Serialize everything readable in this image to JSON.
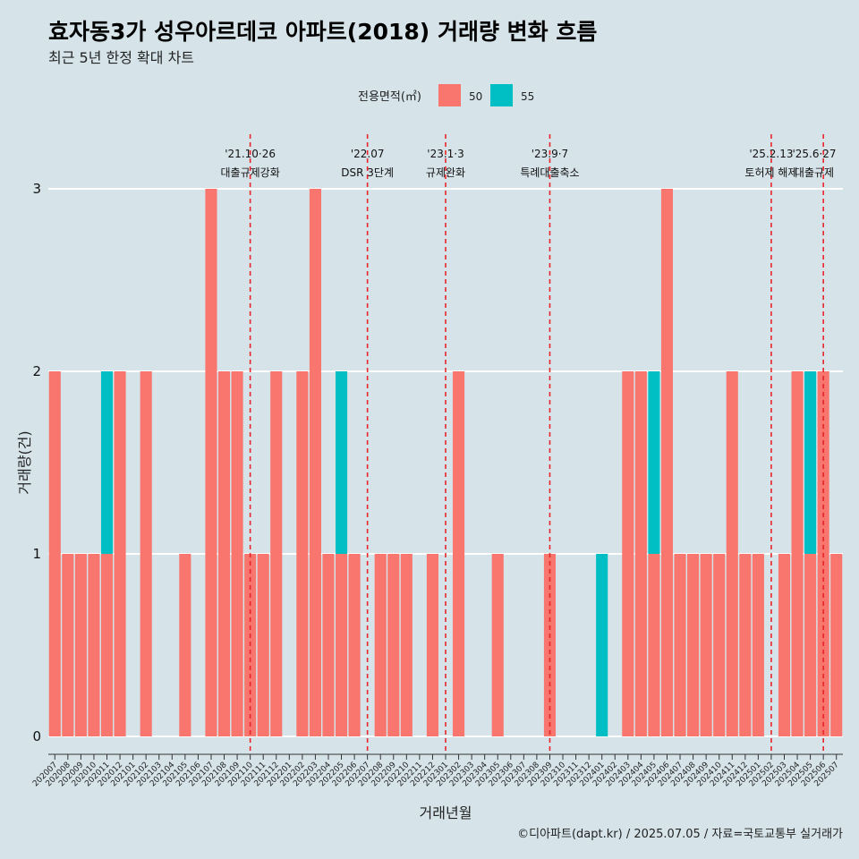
{
  "title": "효자동3가 성우아르데코 아파트(2018) 거래량 변화 흐름",
  "subtitle": "최근 5년 한정 확대 차트",
  "caption": "©디아파트(dapt.kr) / 2025.07.05 / 자료=국토교통부 실거래가",
  "colors": {
    "background": "#d6e4ea",
    "s50": "#f8766d",
    "s55": "#00bfc4",
    "event": "#e8262a",
    "grid": "#ffffff"
  },
  "chart_data": {
    "type": "bar",
    "stacked": true,
    "title": "효자동3가 성우아르데코 아파트(2018) 거래량 변화 흐름",
    "xlabel": "거래년월",
    "ylabel": "거래량(건)",
    "ylim": [
      0,
      3
    ],
    "yticks": [
      0,
      1,
      2,
      3
    ],
    "legend_title": "전용면적(㎡)",
    "legend_position": "top",
    "categories": [
      "202007",
      "202008",
      "202009",
      "202010",
      "202011",
      "202012",
      "202101",
      "202102",
      "202103",
      "202104",
      "202105",
      "202106",
      "202107",
      "202108",
      "202109",
      "202110",
      "202111",
      "202112",
      "202201",
      "202202",
      "202203",
      "202204",
      "202205",
      "202206",
      "202207",
      "202208",
      "202209",
      "202210",
      "202211",
      "202212",
      "202301",
      "202302",
      "202303",
      "202304",
      "202305",
      "202306",
      "202307",
      "202308",
      "202309",
      "202310",
      "202311",
      "202312",
      "202401",
      "202402",
      "202403",
      "202404",
      "202405",
      "202406",
      "202407",
      "202408",
      "202409",
      "202410",
      "202411",
      "202412",
      "202501",
      "202502",
      "202503",
      "202504",
      "202505",
      "202506",
      "202507"
    ],
    "series": [
      {
        "name": "50",
        "values": [
          2,
          1,
          1,
          1,
          1,
          2,
          0,
          2,
          0,
          0,
          1,
          0,
          3,
          2,
          2,
          1,
          1,
          2,
          0,
          2,
          3,
          1,
          1,
          1,
          0,
          1,
          1,
          1,
          0,
          1,
          0,
          2,
          0,
          0,
          1,
          0,
          0,
          0,
          1,
          0,
          0,
          0,
          0,
          0,
          2,
          2,
          1,
          3,
          1,
          1,
          1,
          1,
          2,
          1,
          1,
          0,
          1,
          2,
          1,
          2,
          1
        ]
      },
      {
        "name": "55",
        "values": [
          0,
          0,
          0,
          0,
          1,
          0,
          0,
          0,
          0,
          0,
          0,
          0,
          0,
          0,
          0,
          0,
          0,
          0,
          0,
          0,
          0,
          0,
          1,
          0,
          0,
          0,
          0,
          0,
          0,
          0,
          0,
          0,
          0,
          0,
          0,
          0,
          0,
          0,
          0,
          0,
          0,
          0,
          1,
          0,
          0,
          0,
          1,
          0,
          0,
          0,
          0,
          0,
          0,
          0,
          0,
          0,
          0,
          0,
          1,
          0,
          0
        ]
      }
    ],
    "events": [
      {
        "month": "202110",
        "date": "'21.10·26",
        "label": "대출규제강화"
      },
      {
        "month": "202207",
        "date": "'22.07",
        "label": "DSR 3단계"
      },
      {
        "month": "202301",
        "date": "'23.1·3",
        "label": "규제완화"
      },
      {
        "month": "202309",
        "date": "'23.9·7",
        "label": "특례대출축소"
      },
      {
        "month": "202502",
        "date": "'25.2.13",
        "label": "토허제 해제"
      },
      {
        "month": "202506",
        "date": "'25.6·27",
        "label": "대출규제"
      }
    ]
  }
}
